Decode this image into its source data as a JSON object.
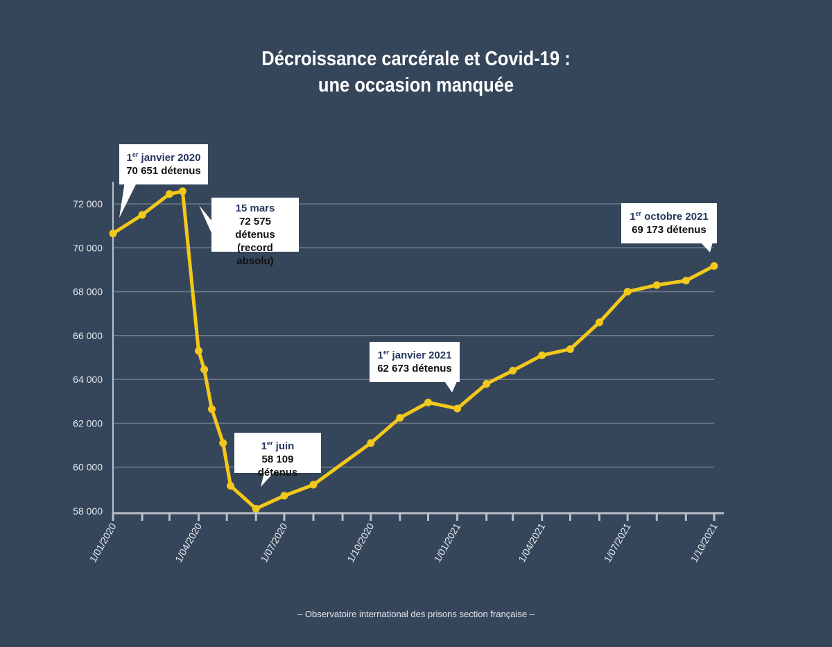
{
  "title": {
    "line1": "Décroissance carcérale et Covid-19 :",
    "line2": "une occasion manquée"
  },
  "footer": "– Observatoire international des prisons section française –",
  "colors": {
    "background": "#36465a",
    "line": "#f2c81b",
    "grid": "#6c7889",
    "axis": "#b8c0cb",
    "callout_date": "#26385f"
  },
  "callouts": {
    "jan2020": {
      "sup": "er",
      "pre": "1",
      "date": " janvier 2020",
      "value": "70 651 détenus"
    },
    "mar2020": {
      "date": "15 mars",
      "value": "72 575 détenus",
      "extra": "(record absolu)"
    },
    "jun2020": {
      "sup": "er",
      "pre": "1",
      "date": " juin",
      "value": "58 109 détenus"
    },
    "jan2021": {
      "sup": "er",
      "pre": "1",
      "date": " janvier 2021",
      "value": "62 673 détenus"
    },
    "oct2021": {
      "sup": "er",
      "pre": "1",
      "date": " octobre 2021",
      "value": "69 173 détenus"
    }
  },
  "chart_data": {
    "type": "line",
    "title": "Décroissance carcérale et Covid-19 : une occasion manquée",
    "xlabel": "",
    "ylabel": "",
    "ylim": [
      58000,
      72000
    ],
    "yticks": [
      58000,
      60000,
      62000,
      64000,
      66000,
      68000,
      70000,
      72000
    ],
    "ytick_labels": [
      "58 000",
      "60 000",
      "62 000",
      "64 000",
      "66 000",
      "68 000",
      "70 000",
      "72 000"
    ],
    "xticks": [
      "2020-01-01",
      "2020-02-01",
      "2020-03-01",
      "2020-04-01",
      "2020-05-01",
      "2020-06-01",
      "2020-07-01",
      "2020-08-01",
      "2020-09-01",
      "2020-10-01",
      "2020-11-01",
      "2020-12-01",
      "2021-01-01",
      "2021-02-01",
      "2021-03-01",
      "2021-04-01",
      "2021-05-01",
      "2021-06-01",
      "2021-07-01",
      "2021-08-01",
      "2021-09-01",
      "2021-10-01"
    ],
    "xtick_labels": [
      {
        "date": "2020-01-01",
        "label": "1/01/2020"
      },
      {
        "date": "2020-04-01",
        "label": "1/04/2020"
      },
      {
        "date": "2020-07-01",
        "label": "1/07/2020"
      },
      {
        "date": "2020-10-01",
        "label": "1/10/2020"
      },
      {
        "date": "2021-01-01",
        "label": "1/01/2021"
      },
      {
        "date": "2021-04-01",
        "label": "1/04/2021"
      },
      {
        "date": "2021-07-01",
        "label": "1/07/2021"
      },
      {
        "date": "2021-10-01",
        "label": "1/10/2021"
      }
    ],
    "grid": true,
    "series": [
      {
        "points": [
          {
            "x": "2020-01-01",
            "y": 70651
          },
          {
            "x": "2020-02-01",
            "y": 71500
          },
          {
            "x": "2020-03-01",
            "y": 72450
          },
          {
            "x": "2020-03-15",
            "y": 72575
          },
          {
            "x": "2020-04-01",
            "y": 65300
          },
          {
            "x": "2020-04-07",
            "y": 64450
          },
          {
            "x": "2020-04-15",
            "y": 62650
          },
          {
            "x": "2020-04-27",
            "y": 61100
          },
          {
            "x": "2020-05-05",
            "y": 59150
          },
          {
            "x": "2020-06-01",
            "y": 58109
          },
          {
            "x": "2020-07-01",
            "y": 58700
          },
          {
            "x": "2020-08-01",
            "y": 59200
          },
          {
            "x": "2020-10-01",
            "y": 61100
          },
          {
            "x": "2020-11-01",
            "y": 62250
          },
          {
            "x": "2020-12-01",
            "y": 62950
          },
          {
            "x": "2021-01-01",
            "y": 62673
          },
          {
            "x": "2021-02-01",
            "y": 63800
          },
          {
            "x": "2021-03-01",
            "y": 64400
          },
          {
            "x": "2021-04-01",
            "y": 65100
          },
          {
            "x": "2021-05-01",
            "y": 65380
          },
          {
            "x": "2021-06-01",
            "y": 66600
          },
          {
            "x": "2021-07-01",
            "y": 68000
          },
          {
            "x": "2021-08-01",
            "y": 68300
          },
          {
            "x": "2021-09-01",
            "y": 68500
          },
          {
            "x": "2021-10-01",
            "y": 69173
          }
        ]
      }
    ]
  }
}
